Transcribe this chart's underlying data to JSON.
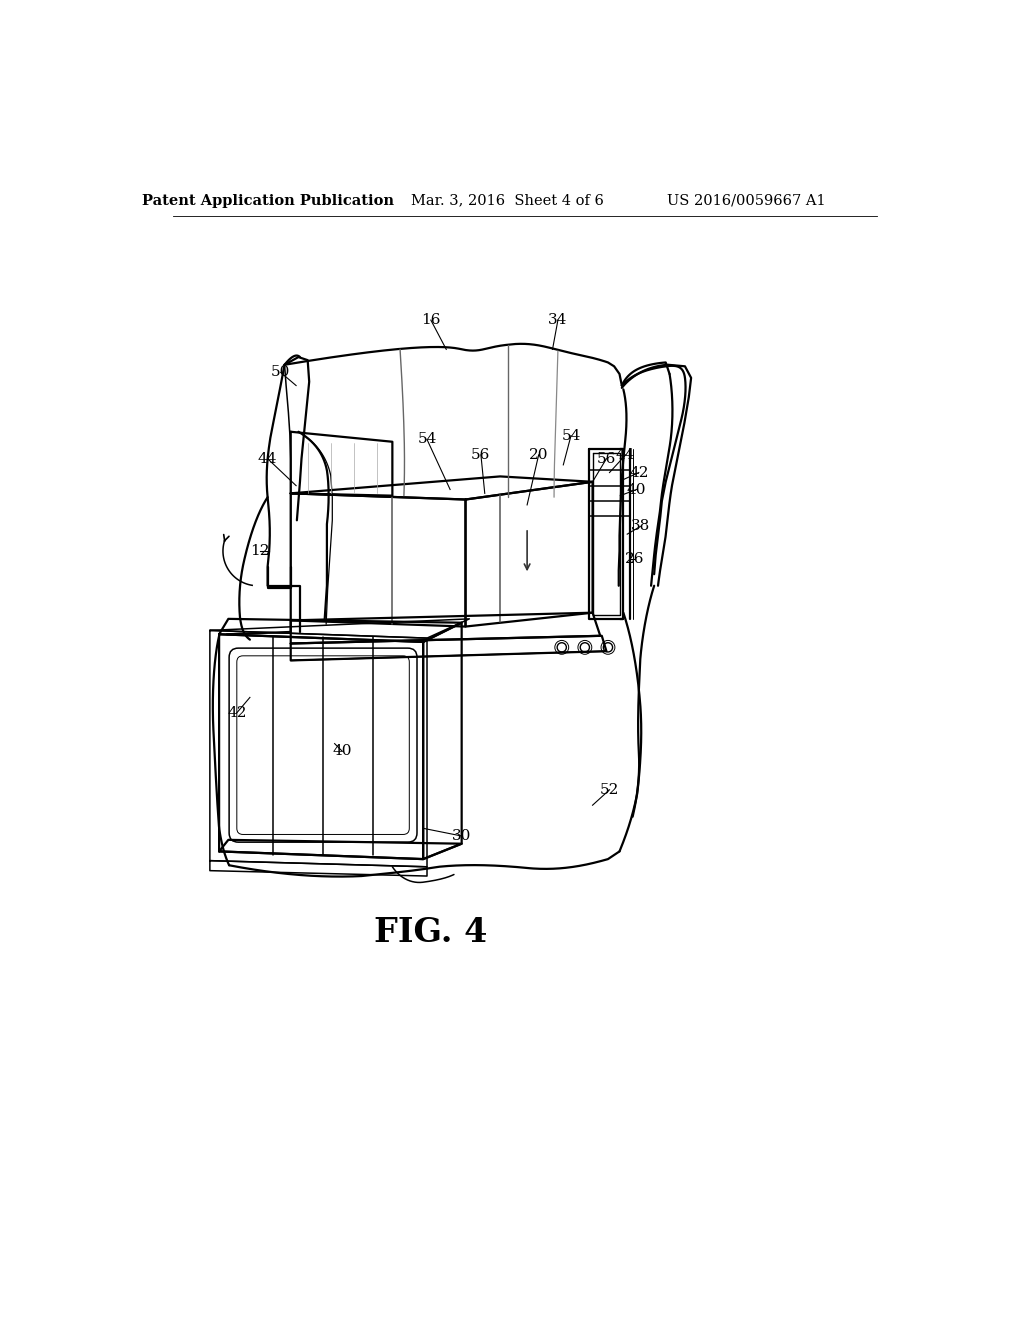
{
  "header_left": "Patent Application Publication",
  "header_mid": "Mar. 3, 2016  Sheet 4 of 6",
  "header_right": "US 2016/0059667 A1",
  "fig_label": "FIG. 4",
  "background_color": "#ffffff",
  "line_color": "#000000",
  "lw_main": 1.6,
  "lw_med": 1.1,
  "lw_thin": 0.7,
  "refs": [
    [
      "16",
      390,
      210,
      410,
      248,
      0
    ],
    [
      "34",
      555,
      210,
      548,
      248,
      0
    ],
    [
      "50",
      195,
      278,
      215,
      295,
      0
    ],
    [
      "44",
      178,
      390,
      215,
      425,
      0
    ],
    [
      "54",
      385,
      365,
      415,
      430,
      0
    ],
    [
      "56",
      455,
      385,
      460,
      435,
      0
    ],
    [
      "20",
      530,
      385,
      515,
      450,
      0
    ],
    [
      "54",
      572,
      360,
      562,
      398,
      0
    ],
    [
      "56",
      618,
      390,
      600,
      420,
      0
    ],
    [
      "44",
      643,
      385,
      622,
      408,
      0
    ],
    [
      "42",
      660,
      408,
      638,
      418,
      0
    ],
    [
      "40",
      657,
      430,
      636,
      438,
      0
    ],
    [
      "38",
      662,
      478,
      645,
      488,
      0
    ],
    [
      "26",
      655,
      520,
      648,
      520,
      0
    ],
    [
      "12",
      168,
      510,
      180,
      510,
      0
    ],
    [
      "52",
      622,
      820,
      600,
      840,
      0
    ],
    [
      "30",
      430,
      880,
      380,
      870,
      0
    ],
    [
      "42",
      138,
      720,
      155,
      700,
      0
    ],
    [
      "40",
      275,
      770,
      265,
      760,
      0
    ]
  ]
}
